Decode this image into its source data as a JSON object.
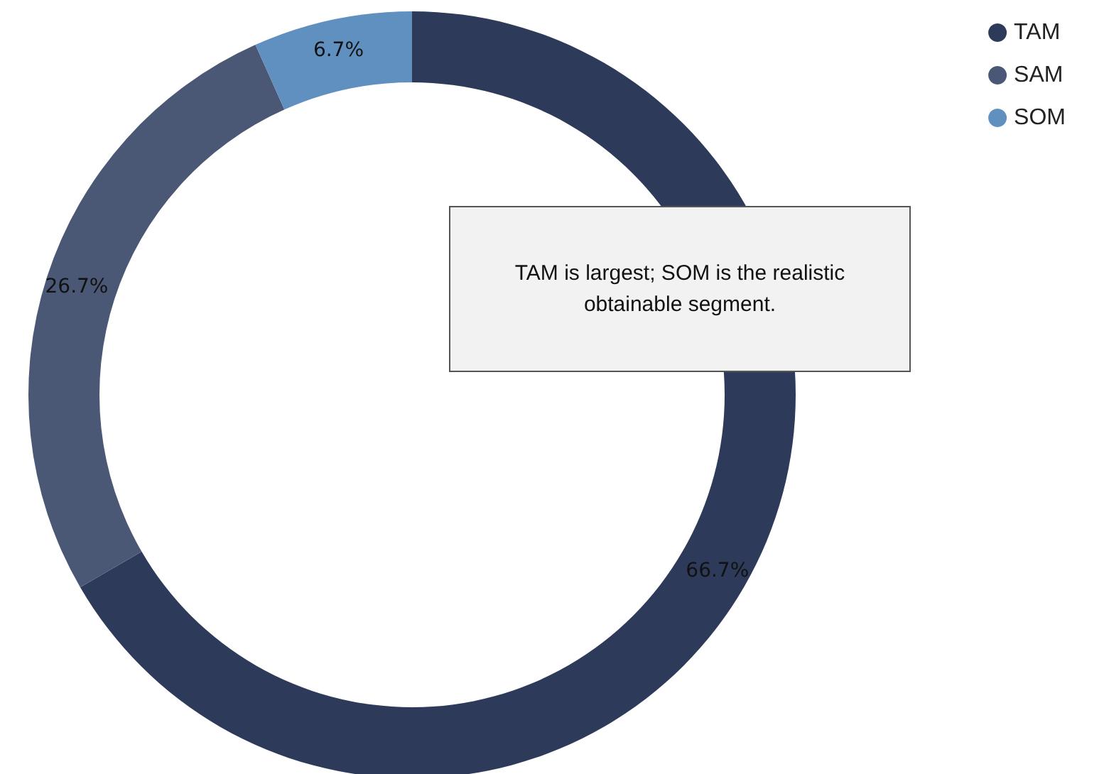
{
  "chart_data": {
    "type": "donut",
    "categories": [
      "TAM",
      "SAM",
      "SOM"
    ],
    "values": [
      66.7,
      26.7,
      6.7
    ],
    "colors": [
      "#2e3a59",
      "#4a5876",
      "#6090c0"
    ],
    "value_labels": [
      "66.7%",
      "26.7%",
      "6.7%"
    ],
    "legend": "top right",
    "annotations": [
      "TAM is largest; SOM is the realistic obtainable segment."
    ]
  }
}
